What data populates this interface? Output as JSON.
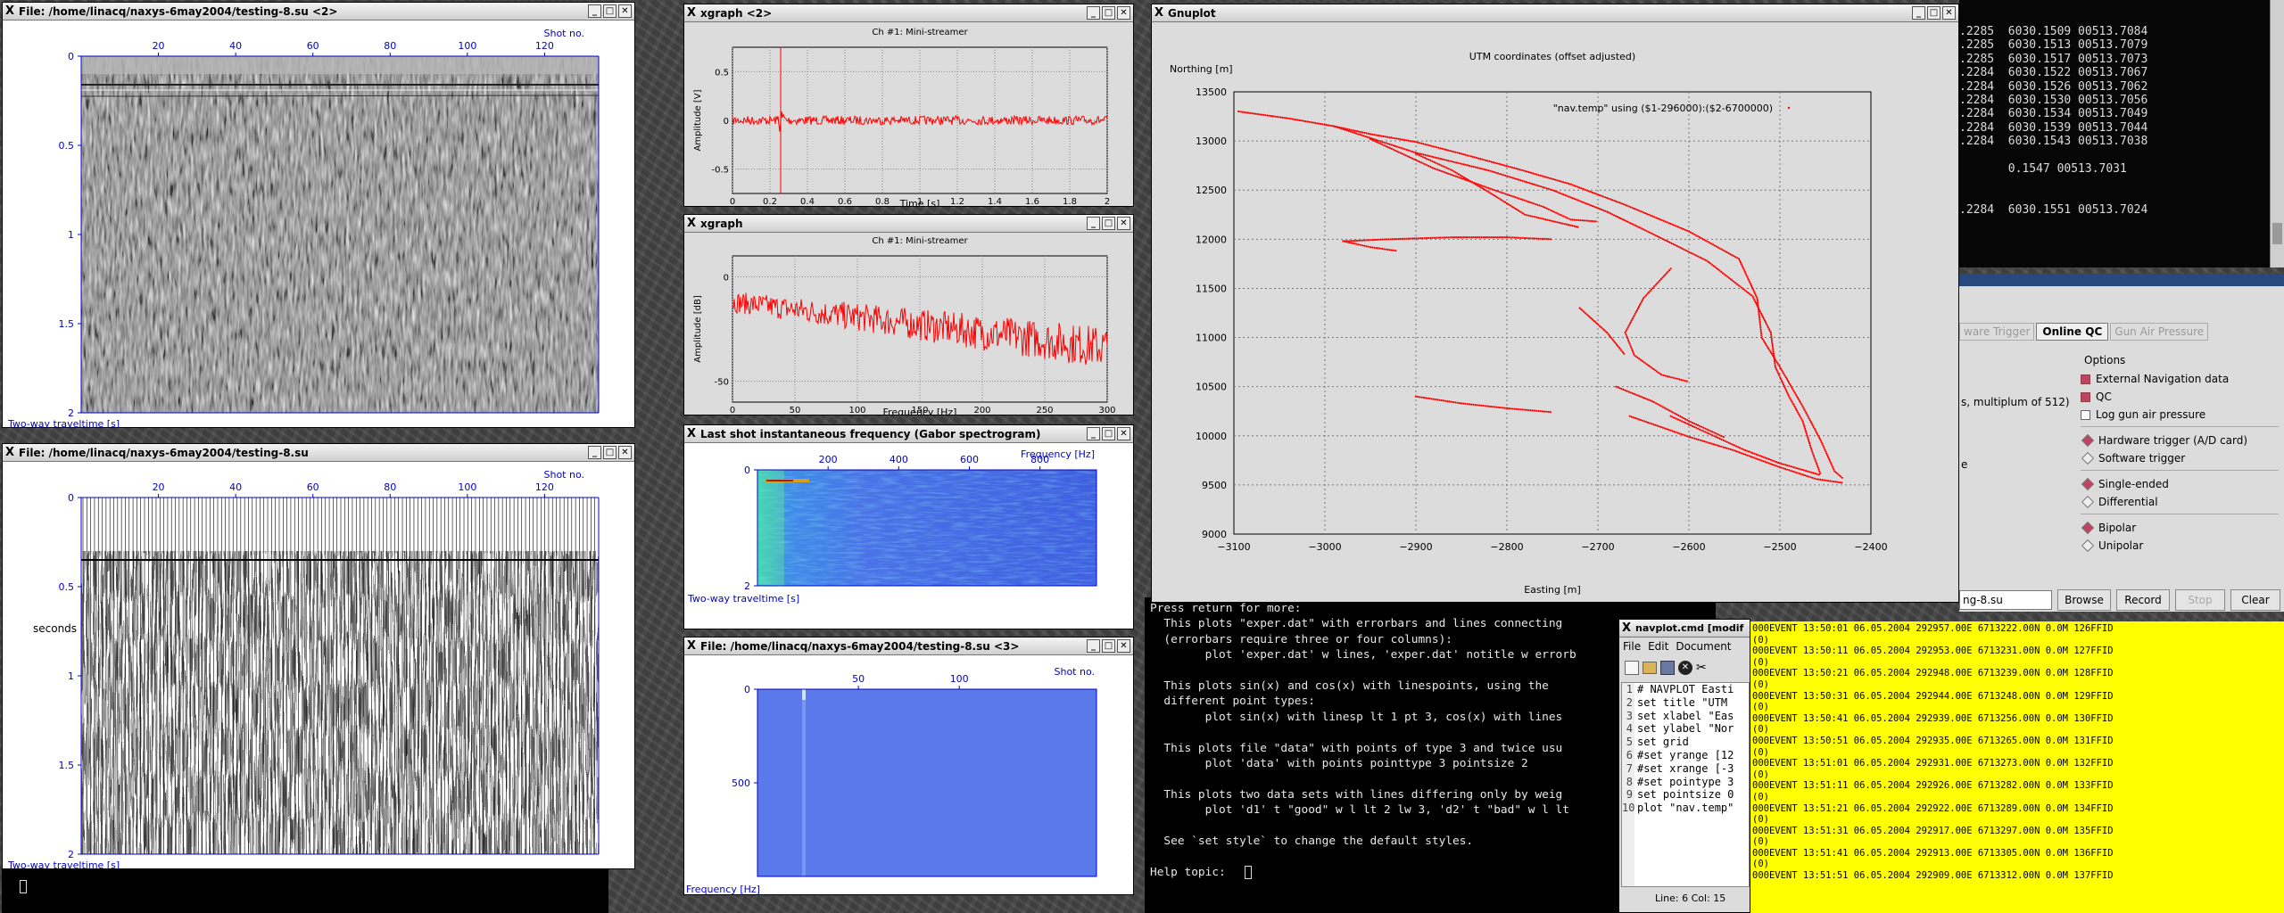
{
  "windows": {
    "su_top": {
      "title": "File: /home/linacq/naxys-6may2004/testing-8.su <2>",
      "shot_label": "Shot no.",
      "x_ticks": [
        "20",
        "40",
        "60",
        "80",
        "100",
        "120"
      ],
      "y_ticks": [
        "0",
        "0.5",
        "1",
        "1.5",
        "2"
      ],
      "ylabel": "Two-way traveltime [s]"
    },
    "su_bottom": {
      "title": "File: /home/linacq/naxys-6may2004/testing-8.su",
      "shot_label": "Shot no.",
      "x_ticks": [
        "20",
        "40",
        "60",
        "80",
        "100",
        "120"
      ],
      "y_ticks": [
        "0",
        "0.5",
        "1",
        "1.5",
        "2"
      ],
      "ylabel": "Two-way traveltime [s]",
      "side_label": "seconds"
    },
    "xgraph1": {
      "title": "xgraph <2>",
      "plot_title": "Ch #1: Mini-streamer",
      "xlabel": "Time [s]",
      "ylabel": "Amplitude [V]",
      "x_ticks": [
        "0",
        "0.2",
        "0.4",
        "0.6",
        "0.8",
        "1",
        "1.2",
        "1.4",
        "1.6",
        "1.8",
        "2"
      ],
      "y_ticks": [
        "0.5",
        "0",
        "-0.5"
      ]
    },
    "xgraph2": {
      "title": "xgraph",
      "plot_title": "Ch #1: Mini-streamer",
      "xlabel": "Frequency [Hz]",
      "ylabel": "Amplitude [dB]",
      "x_ticks": [
        "0",
        "50",
        "100",
        "150",
        "200",
        "250",
        "300"
      ],
      "y_ticks": [
        "0",
        "-50"
      ]
    },
    "gabor": {
      "title": "Last shot instantaneous frequency (Gabor spectrogram)",
      "freq_label": "Frequency [Hz]",
      "x_ticks": [
        "200",
        "400",
        "600",
        "800"
      ],
      "y_ticks": [
        "0",
        "2"
      ],
      "ylabel": "Two-way traveltime [s]"
    },
    "su3": {
      "title": "File: /home/linacq/naxys-6may2004/testing-8.su <3>",
      "shot_label": "Shot no.",
      "x_ticks": [
        "50",
        "100"
      ],
      "y_ticks": [
        "0",
        "500"
      ],
      "ylabel": "Frequency [Hz]"
    },
    "gnuplot": {
      "title": "Gnuplot",
      "plot_title": "UTM coordinates (offset adjusted)",
      "ylabel": "Northing [m]",
      "xlabel": "Easting [m]",
      "legend": "\"nav.temp\" using ($1-296000):($2-6700000)",
      "x_ticks": [
        "−3100",
        "−3000",
        "−2900",
        "−2800",
        "−2700",
        "−2600",
        "−2500",
        "−2400"
      ],
      "y_ticks": [
        "13500",
        "13000",
        "12500",
        "12000",
        "11500",
        "11000",
        "10500",
        "10000",
        "9500",
        "9000"
      ]
    }
  },
  "gnuplot_term": {
    "lines": [
      "Press return for more:",
      "  This plots \"exper.dat\" with errorbars and lines connecting",
      "  (errorbars require three or four columns):",
      "        plot 'exper.dat' w lines, 'exper.dat' notitle w errorb",
      "",
      "  This plots sin(x) and cos(x) with linespoints, using the",
      "  different point types:",
      "        plot sin(x) with linesp lt 1 pt 3, cos(x) with lines",
      "",
      "  This plots file \"data\" with points of type 3 and twice usu",
      "        plot 'data' with points pointtype 3 pointsize 2",
      "",
      "  This plots two data sets with lines differing only by weig",
      "        plot 'd1' t \"good\" w l lt 2 lw 3, 'd2' t \"bad\" w l lt",
      "",
      "  See `set style` to change the default styles.",
      "",
      "Help topic: "
    ]
  },
  "navplot": {
    "title": "navplot.cmd [modif",
    "menu": [
      "File",
      "Edit",
      "Document"
    ],
    "lines": [
      "# NAVPLOT Easti",
      "set title \"UTM",
      "set xlabel \"Eas",
      "set ylabel \"Nor",
      "set grid",
      "#set yrange [12",
      "#set xrange [-3",
      "#set pointype 3",
      "set pointsize 0",
      "plot \"nav.temp\""
    ],
    "status": "Line: 6 Col: 15"
  },
  "nav_term": {
    "lines": [
      ".2285  6030.1509 00513.7084",
      ".2285  6030.1513 00513.7079",
      ".2285  6030.1517 00513.7073",
      ".2284  6030.1522 00513.7067",
      ".2284  6030.1526 00513.7062",
      ".2284  6030.1530 00513.7056",
      ".2284  6030.1534 00513.7049",
      ".2284  6030.1539 00513.7044",
      ".2284  6030.1543 00513.7038",
      "",
      "       0.1547 00513.7031",
      "",
      "",
      ".2284  6030.1551 00513.7024"
    ]
  },
  "qc": {
    "tabs": [
      "ware Trigger",
      "Online QC",
      "Gun Air Pressure"
    ],
    "options_title": "Options",
    "checks": [
      {
        "label": "External Navigation data",
        "on": true
      },
      {
        "label": "QC",
        "on": true
      },
      {
        "label": "Log gun air pressure",
        "on": false
      }
    ],
    "trigger": [
      {
        "label": "Hardware trigger (A/D card)",
        "on": true
      },
      {
        "label": "Software trigger",
        "on": false
      }
    ],
    "ended": [
      {
        "label": "Single-ended",
        "on": true
      },
      {
        "label": "Differential",
        "on": false
      }
    ],
    "polar": [
      {
        "label": "Bipolar",
        "on": true
      },
      {
        "label": "Unipolar",
        "on": false
      }
    ],
    "note": "s, multiplum of 512)",
    "file_value": "ng-8.su",
    "browse": "Browse",
    "record": "Record",
    "stop": "Stop",
    "clear": "Clear"
  },
  "event_log": [
    "000EVENT 13:50:01 06.05.2004 292957.00E 6713222.00N 0.0M 126FFID",
    "(0)",
    "000EVENT 13:50:11 06.05.2004 292953.00E 6713231.00N 0.0M 127FFID",
    "(0)",
    "000EVENT 13:50:21 06.05.2004 292948.00E 6713239.00N 0.0M 128FFID",
    "(0)",
    "000EVENT 13:50:31 06.05.2004 292944.00E 6713248.00N 0.0M 129FFID",
    "(0)",
    "000EVENT 13:50:41 06.05.2004 292939.00E 6713256.00N 0.0M 130FFID",
    "(0)",
    "000EVENT 13:50:51 06.05.2004 292935.00E 6713265.00N 0.0M 131FFID",
    "(0)",
    "000EVENT 13:51:01 06.05.2004 292931.00E 6713273.00N 0.0M 132FFID",
    "(0)",
    "000EVENT 13:51:11 06.05.2004 292926.00E 6713282.00N 0.0M 133FFID",
    "(0)",
    "000EVENT 13:51:21 06.05.2004 292922.00E 6713289.00N 0.0M 134FFID",
    "(0)",
    "000EVENT 13:51:31 06.05.2004 292917.00E 6713297.00N 0.0M 135FFID",
    "(0)",
    "000EVENT 13:51:41 06.05.2004 292913.00E 6713305.00N 0.0M 136FFID",
    "(0)",
    "000EVENT 13:51:51 06.05.2004 292909.00E 6713312.00N 0.0M 137FFID"
  ],
  "colors": {
    "trace": "#ff0000",
    "axis_blue": "#0000cc",
    "yellow": "#ffff00"
  },
  "chart_data": [
    {
      "type": "scatter",
      "title": "UTM coordinates (offset adjusted)",
      "xlabel": "Easting [m]",
      "ylabel": "Northing [m]",
      "xlim": [
        -3100,
        -2400
      ],
      "ylim": [
        9000,
        13500
      ],
      "grid": true,
      "legend": "top-right",
      "series": [
        {
          "name": "\"nav.temp\" using ($1-296000):($2-6700000)",
          "tracks": [
            [
              [
                -3095,
                13300
              ],
              [
                -3040,
                13230
              ],
              [
                -2990,
                13150
              ],
              [
                -2950,
                13070
              ],
              [
                -2900,
                12990
              ],
              [
                -2850,
                12870
              ],
              [
                -2790,
                12720
              ],
              [
                -2730,
                12560
              ],
              [
                -2670,
                12350
              ],
              [
                -2600,
                12080
              ],
              [
                -2545,
                11800
              ],
              [
                -2525,
                11400
              ],
              [
                -2520,
                11000
              ],
              [
                -2500,
                10700
              ],
              [
                -2475,
                10300
              ],
              [
                -2455,
                9950
              ],
              [
                -2440,
                9640
              ],
              [
                -2430,
                9560
              ]
            ],
            [
              [
                -2990,
                13150
              ],
              [
                -2900,
                12880
              ],
              [
                -2820,
                12700
              ],
              [
                -2750,
                12500
              ],
              [
                -2690,
                12280
              ],
              [
                -2650,
                12100
              ],
              [
                -2580,
                11780
              ],
              [
                -2530,
                11420
              ],
              [
                -2510,
                11050
              ],
              [
                -2505,
                10700
              ],
              [
                -2490,
                10400
              ],
              [
                -2475,
                10150
              ],
              [
                -2465,
                9850
              ],
              [
                -2455,
                9600
              ]
            ],
            [
              [
                -2950,
                13020
              ],
              [
                -2880,
                12720
              ],
              [
                -2820,
                12520
              ],
              [
                -2760,
                12330
              ],
              [
                -2730,
                12200
              ],
              [
                -2700,
                12180
              ]
            ],
            [
              [
                -2900,
                12870
              ],
              [
                -2860,
                12700
              ],
              [
                -2820,
                12480
              ],
              [
                -2780,
                12250
              ],
              [
                -2720,
                12120
              ]
            ],
            [
              [
                -2980,
                11980
              ],
              [
                -2930,
                12000
              ],
              [
                -2860,
                12020
              ],
              [
                -2800,
                12020
              ],
              [
                -2750,
                12000
              ]
            ],
            [
              [
                -2980,
                11980
              ],
              [
                -2950,
                11920
              ],
              [
                -2920,
                11880
              ]
            ],
            [
              [
                -2620,
                11700
              ],
              [
                -2650,
                11400
              ],
              [
                -2670,
                11050
              ],
              [
                -2660,
                10820
              ],
              [
                -2630,
                10620
              ],
              [
                -2600,
                10550
              ]
            ],
            [
              [
                -2720,
                11300
              ],
              [
                -2690,
                11050
              ],
              [
                -2670,
                10820
              ]
            ],
            [
              [
                -2665,
                10200
              ],
              [
                -2600,
                9990
              ],
              [
                -2550,
                9850
              ],
              [
                -2500,
                9680
              ],
              [
                -2460,
                9560
              ],
              [
                -2430,
                9520
              ]
            ],
            [
              [
                -2620,
                10200
              ],
              [
                -2580,
                10030
              ],
              [
                -2540,
                9860
              ],
              [
                -2500,
                9720
              ],
              [
                -2455,
                9600
              ]
            ],
            [
              [
                -2900,
                10400
              ],
              [
                -2850,
                10330
              ],
              [
                -2800,
                10280
              ],
              [
                -2750,
                10240
              ]
            ],
            [
              [
                -2680,
                10500
              ],
              [
                -2640,
                10350
              ],
              [
                -2600,
                10150
              ],
              [
                -2560,
                9980
              ]
            ]
          ]
        }
      ]
    },
    {
      "type": "line",
      "title": "Ch #1: Mini-streamer",
      "xlabel": "Time [s]",
      "ylabel": "Amplitude [V]",
      "xlim": [
        0,
        2
      ],
      "ylim": [
        -0.75,
        0.75
      ]
    },
    {
      "type": "line",
      "title": "Ch #1: Mini-streamer",
      "xlabel": "Frequency [Hz]",
      "ylabel": "Amplitude [dB]",
      "xlim": [
        0,
        300
      ],
      "ylim": [
        -60,
        10
      ]
    }
  ]
}
